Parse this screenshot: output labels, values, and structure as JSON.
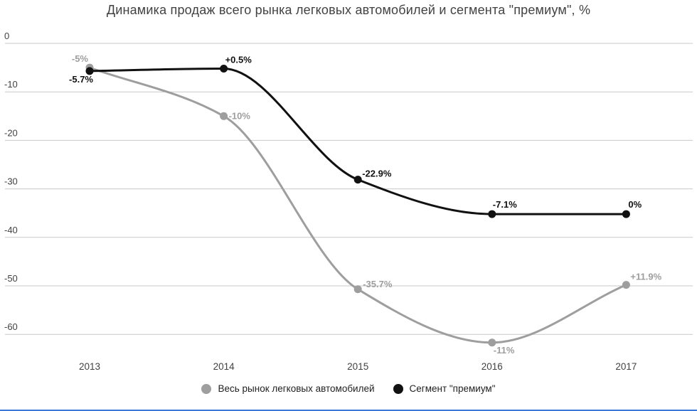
{
  "title": "Динамика продаж всего рынка легковых автомобилей и сегмента \"премиум\", %",
  "chart_data": {
    "type": "line",
    "x": [
      "2013",
      "2014",
      "2015",
      "2016",
      "2017"
    ],
    "unit": "%",
    "yticks": [
      0,
      -10,
      -20,
      -30,
      -40,
      -50,
      -60
    ],
    "ylim": [
      -63,
      1
    ],
    "grid": true,
    "legend_position": "bottom",
    "series": [
      {
        "name": "Весь рынок легковых автомобилей",
        "color": "#9e9e9e",
        "label_color": "#9e9e9e",
        "yearly_change_labels": [
          "-5%",
          "-10%",
          "-35.7%",
          "-11%",
          "+11.9%"
        ],
        "yearly_change_values": [
          -5,
          -10,
          -35.7,
          -11,
          11.9
        ],
        "plotted_cumulative_values": [
          -5,
          -15,
          -50.7,
          -61.7,
          -49.8
        ],
        "label_offsets": [
          {
            "dx": -2,
            "dy": -8,
            "anchor": "end"
          },
          {
            "dx": 7,
            "dy": 4,
            "anchor": "start"
          },
          {
            "dx": 7,
            "dy": -3,
            "anchor": "start"
          },
          {
            "dx": 2,
            "dy": 15,
            "anchor": "start"
          },
          {
            "dx": 6,
            "dy": -7,
            "anchor": "start"
          }
        ]
      },
      {
        "name": "Сегмент \"премиум\"",
        "color": "#111111",
        "label_color": "#111111",
        "yearly_change_labels": [
          "-5.7%",
          "+0.5%",
          "-22.9%",
          "-7.1%",
          "0%"
        ],
        "yearly_change_values": [
          -5.7,
          0.5,
          -22.9,
          -7.1,
          0
        ],
        "plotted_cumulative_values": [
          -5.7,
          -5.2,
          -28.1,
          -35.2,
          -35.2
        ],
        "label_offsets": [
          {
            "dx": 5,
            "dy": 16,
            "anchor": "end"
          },
          {
            "dx": 2,
            "dy": -8,
            "anchor": "start"
          },
          {
            "dx": 6,
            "dy": -4,
            "anchor": "start"
          },
          {
            "dx": 1,
            "dy": -9,
            "anchor": "start"
          },
          {
            "dx": 3,
            "dy": -9,
            "anchor": "start"
          }
        ]
      }
    ]
  },
  "axis": {
    "tick_color": "#424242",
    "grid_color": "#c9c9c9"
  },
  "accent": {
    "bottom_bar_color": "#3c78d8"
  }
}
